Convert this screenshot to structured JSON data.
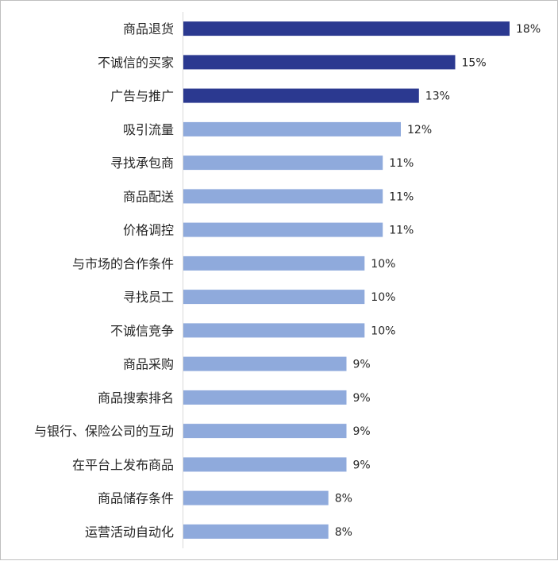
{
  "chart_data": {
    "type": "bar",
    "orientation": "horizontal",
    "categories": [
      "商品退货",
      "不诚信的买家",
      "广告与推广",
      "吸引流量",
      "寻找承包商",
      "商品配送",
      "价格调控",
      "与市场的合作条件",
      "寻找员工",
      "不诚信竞争",
      "商品采购",
      "商品搜索排名",
      "与银行、保险公司的互动",
      "在平台上发布商品",
      "商品储存条件",
      "运营活动自动化"
    ],
    "values": [
      18,
      15,
      13,
      12,
      11,
      11,
      11,
      10,
      10,
      10,
      9,
      9,
      9,
      9,
      8,
      8
    ],
    "value_labels": [
      "18%",
      "15%",
      "13%",
      "12%",
      "11%",
      "11%",
      "11%",
      "10%",
      "10%",
      "10%",
      "9%",
      "9%",
      "9%",
      "9%",
      "8%",
      "8%"
    ],
    "highlight_count": 3,
    "colors": {
      "highlight": "#2b3990",
      "normal": "#8faadc",
      "axis": "#d9d9d9",
      "text": "#262626"
    },
    "xlim": [
      0,
      18
    ],
    "grid": false,
    "legend": "none"
  }
}
